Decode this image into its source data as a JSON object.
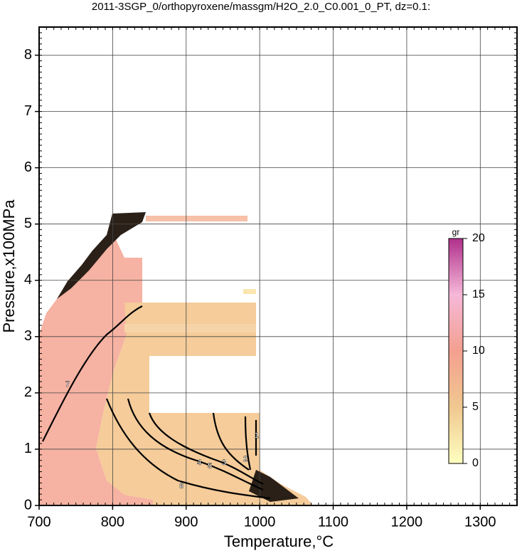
{
  "chart_data": {
    "type": "contour",
    "title": "2011-3SGP_0/orthopyroxene/massgm/H2O_2.0_C0.001_0_PT, dz=0.1:",
    "x_label": "Temperature,°C",
    "y_label": "Pressure,x100MPa",
    "xlim": [
      700,
      1350
    ],
    "xticks": [
      700,
      800,
      900,
      1000,
      1100,
      1200,
      1300
    ],
    "ylim": [
      0,
      8.5
    ],
    "yticks": [
      0,
      1,
      2,
      3,
      4,
      5,
      6,
      7,
      8
    ],
    "grid": true,
    "contour_levels": [
      7,
      6,
      5,
      4,
      3,
      2,
      1
    ],
    "colorbar": {
      "label": "gr",
      "lim": [
        0,
        20
      ],
      "ticks": [
        0,
        5,
        10,
        15,
        20
      ],
      "colors": [
        "#ffffc0",
        "#f0c890",
        "#f4a090",
        "#f5b8d8",
        "#b0308c"
      ]
    }
  }
}
